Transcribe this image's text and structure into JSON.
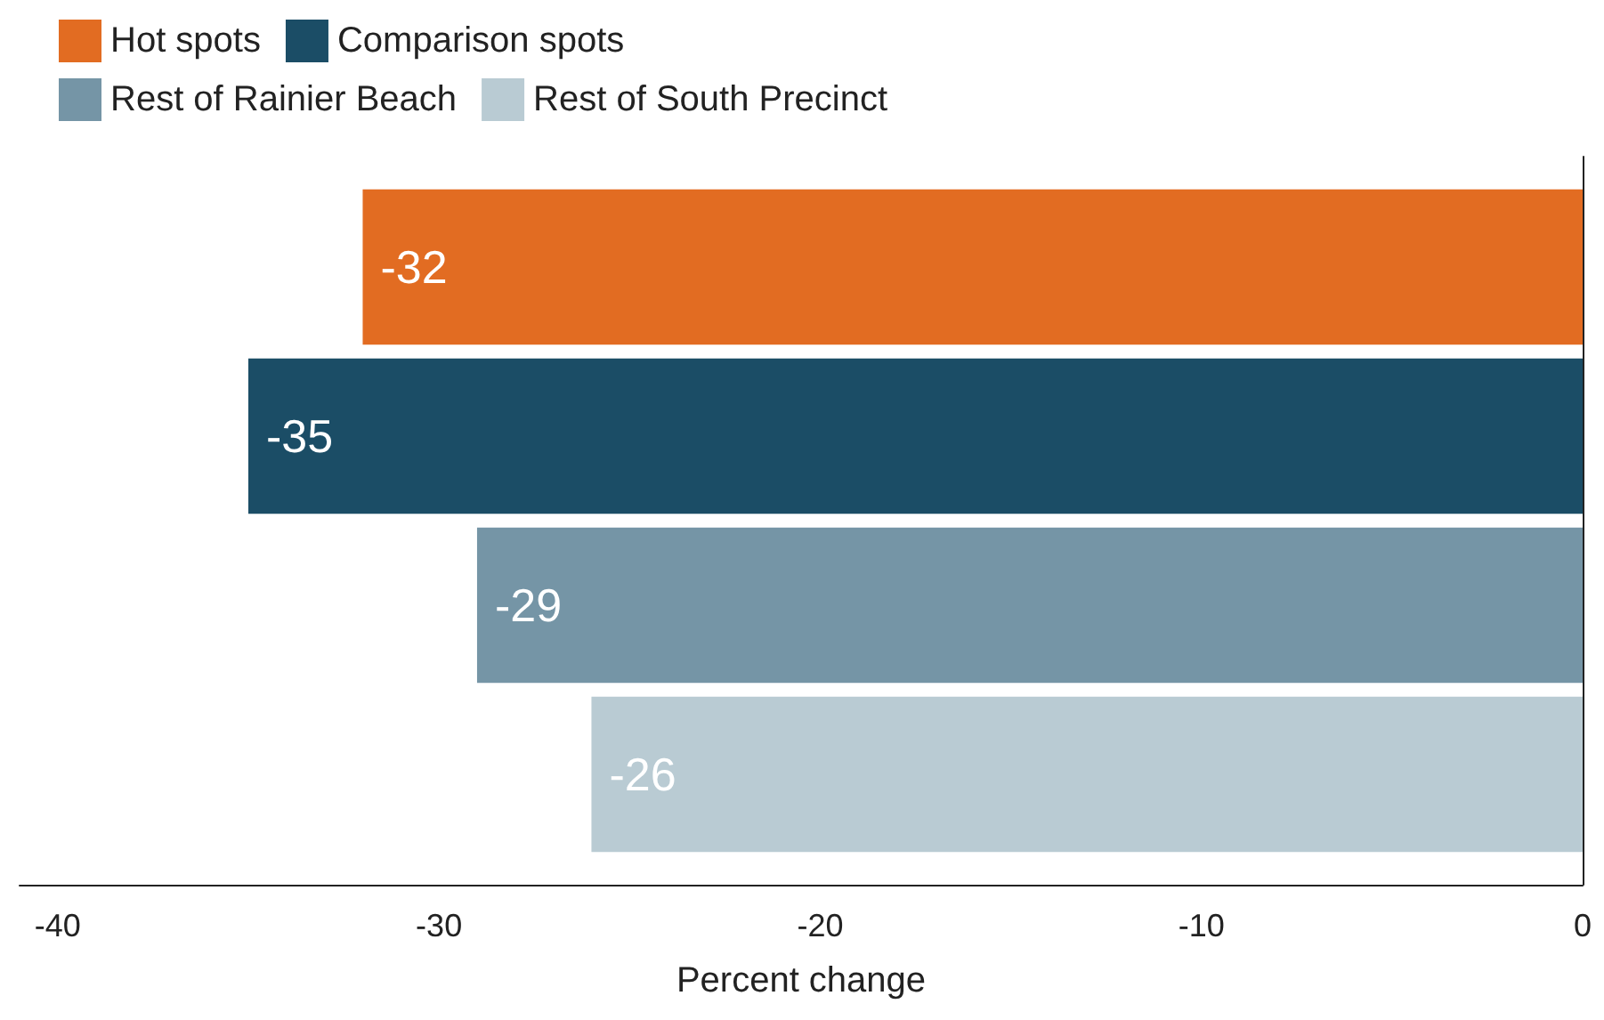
{
  "chart_data": {
    "type": "bar",
    "orientation": "horizontal",
    "xlabel": "Percent change",
    "categories": [
      null
    ],
    "series": [
      {
        "name": "Hot spots",
        "color": "#e26c22",
        "values": [
          -32
        ]
      },
      {
        "name": "Comparison spots",
        "color": "#1b4d66",
        "values": [
          -35
        ]
      },
      {
        "name": "Rest of Rainier Beach",
        "color": "#7595a6",
        "values": [
          -29
        ]
      },
      {
        "name": "Rest of South Precinct",
        "color": "#b9cbd3",
        "values": [
          -26
        ]
      }
    ],
    "xlim": [
      -41,
      0
    ],
    "xticks": [
      -40,
      -30,
      -20,
      -10,
      0
    ],
    "data_labels": true,
    "legend": "top left",
    "grid": false
  }
}
